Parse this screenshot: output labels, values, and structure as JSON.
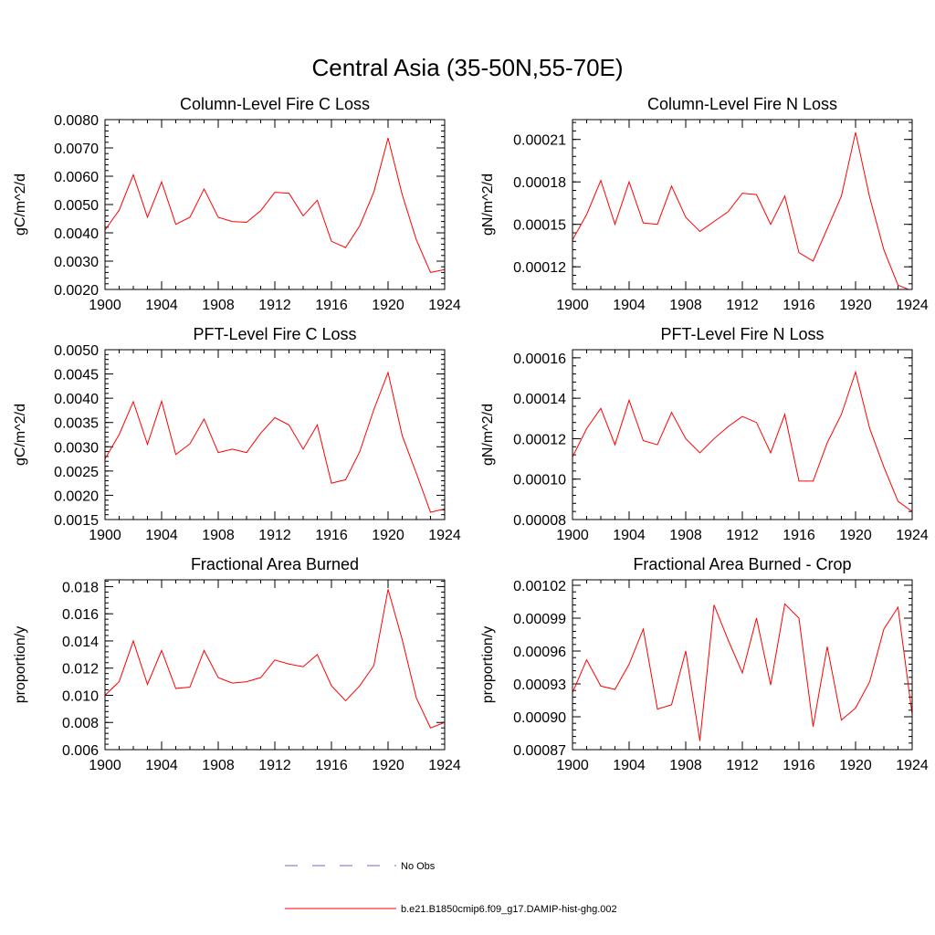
{
  "figure_title": "Central Asia (35-50N,55-70E)",
  "legend": {
    "items": [
      {
        "label": "No Obs",
        "color": "#6a6ad0",
        "style": "dashed"
      },
      {
        "label": "b.e21.B1850cmip6.f09_g17.DAMIP-hist-ghg.002",
        "color": "#ff0000",
        "style": "solid"
      }
    ]
  },
  "chart_data": [
    {
      "type": "line",
      "title": "Column-Level Fire C Loss",
      "ylabel": "gC/m^2/d",
      "x": [
        1900,
        1901,
        1902,
        1903,
        1904,
        1905,
        1906,
        1907,
        1908,
        1909,
        1910,
        1911,
        1912,
        1913,
        1914,
        1915,
        1916,
        1917,
        1918,
        1919,
        1920,
        1921,
        1922,
        1923,
        1924
      ],
      "xlim": [
        1900,
        1924
      ],
      "xticks": [
        "1900",
        "1904",
        "1908",
        "1912",
        "1916",
        "1920",
        "1924"
      ],
      "ylim": [
        0.002,
        0.008
      ],
      "yticks": [
        "0.0020",
        "0.0030",
        "0.0040",
        "0.0050",
        "0.0060",
        "0.0070",
        "0.0080"
      ],
      "series": [
        {
          "color": "#ff0000",
          "values": [
            0.0041,
            0.0048,
            0.00605,
            0.00455,
            0.0058,
            0.0043,
            0.00455,
            0.00555,
            0.00455,
            0.0044,
            0.00437,
            0.00478,
            0.00543,
            0.0054,
            0.0046,
            0.00515,
            0.0037,
            0.00348,
            0.00425,
            0.00545,
            0.00735,
            0.00535,
            0.00375,
            0.0026,
            0.0027
          ]
        }
      ]
    },
    {
      "type": "line",
      "title": "Column-Level Fire N Loss",
      "ylabel": "gN/m^2/d",
      "x": [
        1900,
        1901,
        1902,
        1903,
        1904,
        1905,
        1906,
        1907,
        1908,
        1909,
        1910,
        1911,
        1912,
        1913,
        1914,
        1915,
        1916,
        1917,
        1918,
        1919,
        1920,
        1921,
        1922,
        1923,
        1924
      ],
      "xlim": [
        1900,
        1924
      ],
      "xticks": [
        "1900",
        "1904",
        "1908",
        "1912",
        "1916",
        "1920",
        "1924"
      ],
      "ylim": [
        0.000104,
        0.000224
      ],
      "yticks": [
        "0.00012",
        "0.00015",
        "0.00018",
        "0.00021"
      ],
      "series": [
        {
          "color": "#ff0000",
          "values": [
            0.000139,
            0.000157,
            0.000181,
            0.00015,
            0.00018,
            0.000151,
            0.00015,
            0.000177,
            0.000155,
            0.000145,
            0.000152,
            0.000159,
            0.000172,
            0.000171,
            0.00015,
            0.00017,
            0.00013,
            0.000124,
            0.000147,
            0.00017,
            0.000215,
            0.000169,
            0.000132,
            0.000107,
            0.000103
          ]
        }
      ]
    },
    {
      "type": "line",
      "title": "PFT-Level Fire C Loss",
      "ylabel": "gC/m^2/d",
      "x": [
        1900,
        1901,
        1902,
        1903,
        1904,
        1905,
        1906,
        1907,
        1908,
        1909,
        1910,
        1911,
        1912,
        1913,
        1914,
        1915,
        1916,
        1917,
        1918,
        1919,
        1920,
        1921,
        1922,
        1923,
        1924
      ],
      "xlim": [
        1900,
        1924
      ],
      "xticks": [
        "1900",
        "1904",
        "1908",
        "1912",
        "1916",
        "1920",
        "1924"
      ],
      "ylim": [
        0.0015,
        0.005
      ],
      "yticks": [
        "0.0015",
        "0.0020",
        "0.0025",
        "0.0030",
        "0.0035",
        "0.0040",
        "0.0045",
        "0.0050"
      ],
      "series": [
        {
          "color": "#ff0000",
          "values": [
            0.00275,
            0.00325,
            0.00393,
            0.00305,
            0.00394,
            0.00284,
            0.00306,
            0.00357,
            0.00288,
            0.00295,
            0.00288,
            0.00328,
            0.0036,
            0.00345,
            0.00295,
            0.00345,
            0.00225,
            0.00232,
            0.0029,
            0.00377,
            0.00453,
            0.00323,
            0.00245,
            0.00165,
            0.00172
          ]
        }
      ]
    },
    {
      "type": "line",
      "title": "PFT-Level Fire N Loss",
      "ylabel": "gN/m^2/d",
      "x": [
        1900,
        1901,
        1902,
        1903,
        1904,
        1905,
        1906,
        1907,
        1908,
        1909,
        1910,
        1911,
        1912,
        1913,
        1914,
        1915,
        1916,
        1917,
        1918,
        1919,
        1920,
        1921,
        1922,
        1923,
        1924
      ],
      "xlim": [
        1900,
        1924
      ],
      "xticks": [
        "1900",
        "1904",
        "1908",
        "1912",
        "1916",
        "1920",
        "1924"
      ],
      "ylim": [
        8e-05,
        0.000164
      ],
      "yticks": [
        "0.00008",
        "0.00010",
        "0.00012",
        "0.00014",
        "0.00016"
      ],
      "series": [
        {
          "color": "#ff0000",
          "values": [
            0.000111,
            0.000125,
            0.000135,
            0.000117,
            0.000139,
            0.000119,
            0.000117,
            0.000133,
            0.00012,
            0.000113,
            0.00012,
            0.000126,
            0.000131,
            0.000128,
            0.000113,
            0.000132,
            9.9e-05,
            9.9e-05,
            0.000118,
            0.000132,
            0.000153,
            0.000125,
            0.000106,
            8.9e-05,
            8.4e-05
          ]
        }
      ]
    },
    {
      "type": "line",
      "title": "Fractional Area Burned",
      "ylabel": "proportion/y",
      "x": [
        1900,
        1901,
        1902,
        1903,
        1904,
        1905,
        1906,
        1907,
        1908,
        1909,
        1910,
        1911,
        1912,
        1913,
        1914,
        1915,
        1916,
        1917,
        1918,
        1919,
        1920,
        1921,
        1922,
        1923,
        1924
      ],
      "xlim": [
        1900,
        1924
      ],
      "xticks": [
        "1900",
        "1904",
        "1908",
        "1912",
        "1916",
        "1920",
        "1924"
      ],
      "ylim": [
        0.006,
        0.0185
      ],
      "yticks": [
        "0.006",
        "0.008",
        "0.010",
        "0.012",
        "0.014",
        "0.016",
        "0.018"
      ],
      "series": [
        {
          "color": "#ff0000",
          "values": [
            0.01,
            0.011,
            0.014,
            0.0108,
            0.0133,
            0.0105,
            0.0106,
            0.0133,
            0.0113,
            0.0109,
            0.011,
            0.0113,
            0.0126,
            0.0123,
            0.0121,
            0.013,
            0.0107,
            0.0096,
            0.0107,
            0.0122,
            0.0178,
            0.0141,
            0.0098,
            0.0076,
            0.008
          ]
        }
      ]
    },
    {
      "type": "line",
      "title": "Fractional Area Burned - Crop",
      "ylabel": "proportion/y",
      "x": [
        1900,
        1901,
        1902,
        1903,
        1904,
        1905,
        1906,
        1907,
        1908,
        1909,
        1910,
        1911,
        1912,
        1913,
        1914,
        1915,
        1916,
        1917,
        1918,
        1919,
        1920,
        1921,
        1922,
        1923,
        1924
      ],
      "xlim": [
        1900,
        1924
      ],
      "xticks": [
        "1900",
        "1904",
        "1908",
        "1912",
        "1916",
        "1920",
        "1924"
      ],
      "ylim": [
        0.00087,
        0.001025
      ],
      "yticks": [
        "0.00087",
        "0.00090",
        "0.00093",
        "0.00096",
        "0.00099",
        "0.00102"
      ],
      "series": [
        {
          "color": "#ff0000",
          "values": [
            0.000922,
            0.000952,
            0.000928,
            0.000925,
            0.000948,
            0.00098,
            0.000907,
            0.000911,
            0.00096,
            0.000878,
            0.001002,
            0.00097,
            0.00094,
            0.00099,
            0.000929,
            0.001003,
            0.00099,
            0.000891,
            0.000964,
            0.000897,
            0.000908,
            0.000932,
            0.00098,
            0.001,
            0.000902
          ]
        }
      ]
    }
  ]
}
